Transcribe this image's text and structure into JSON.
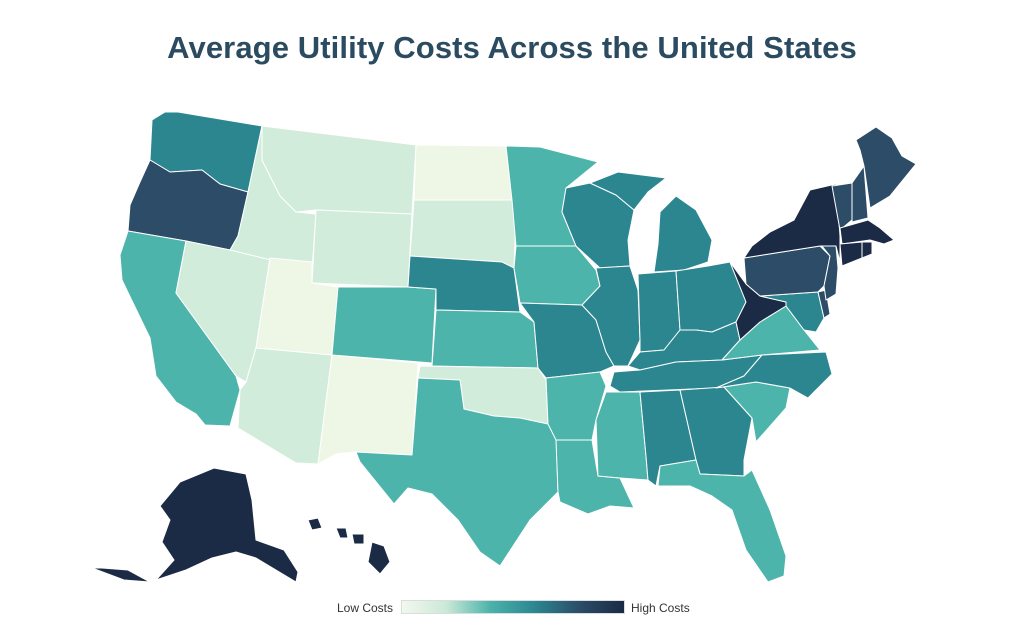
{
  "title": "Average Utility Costs Across the United States",
  "legend": {
    "low_label": "Low Costs",
    "high_label": "High Costs",
    "colors": [
      "#f3f8ec",
      "#cbe8d8",
      "#4ab3aa",
      "#2b8690",
      "#2c4c68",
      "#1b2a44"
    ]
  },
  "palette": {
    "lightest": "#eef6e6",
    "light": "#d2ecdc",
    "mid_teal": "#4db4ab",
    "teal": "#2b8690",
    "dark_teal": "#2f6f7f",
    "navy": "#2c4c68",
    "darkest": "#1b2b45",
    "title_color": "#2b4b61"
  },
  "states": [
    {
      "name": "Washington",
      "level": "teal"
    },
    {
      "name": "Oregon",
      "level": "navy"
    },
    {
      "name": "California",
      "level": "mid_teal"
    },
    {
      "name": "Nevada",
      "level": "light"
    },
    {
      "name": "Idaho",
      "level": "light"
    },
    {
      "name": "Montana",
      "level": "light"
    },
    {
      "name": "Wyoming",
      "level": "light"
    },
    {
      "name": "Utah",
      "level": "lightest"
    },
    {
      "name": "Arizona",
      "level": "light"
    },
    {
      "name": "New Mexico",
      "level": "lightest"
    },
    {
      "name": "Colorado",
      "level": "mid_teal"
    },
    {
      "name": "North Dakota",
      "level": "lightest"
    },
    {
      "name": "South Dakota",
      "level": "light"
    },
    {
      "name": "Nebraska",
      "level": "teal"
    },
    {
      "name": "Kansas",
      "level": "mid_teal"
    },
    {
      "name": "Oklahoma",
      "level": "light"
    },
    {
      "name": "Texas",
      "level": "mid_teal"
    },
    {
      "name": "Minnesota",
      "level": "mid_teal"
    },
    {
      "name": "Iowa",
      "level": "mid_teal"
    },
    {
      "name": "Missouri",
      "level": "teal"
    },
    {
      "name": "Arkansas",
      "level": "mid_teal"
    },
    {
      "name": "Louisiana",
      "level": "mid_teal"
    },
    {
      "name": "Wisconsin",
      "level": "teal"
    },
    {
      "name": "Illinois",
      "level": "teal"
    },
    {
      "name": "Michigan",
      "level": "teal"
    },
    {
      "name": "Indiana",
      "level": "teal"
    },
    {
      "name": "Ohio",
      "level": "teal"
    },
    {
      "name": "Kentucky",
      "level": "teal"
    },
    {
      "name": "Tennessee",
      "level": "teal"
    },
    {
      "name": "Mississippi",
      "level": "mid_teal"
    },
    {
      "name": "Alabama",
      "level": "teal"
    },
    {
      "name": "Georgia",
      "level": "teal"
    },
    {
      "name": "Florida",
      "level": "mid_teal"
    },
    {
      "name": "South Carolina",
      "level": "mid_teal"
    },
    {
      "name": "North Carolina",
      "level": "teal"
    },
    {
      "name": "Virginia",
      "level": "mid_teal"
    },
    {
      "name": "West Virginia",
      "level": "darkest"
    },
    {
      "name": "Maryland",
      "level": "teal"
    },
    {
      "name": "Delaware",
      "level": "navy"
    },
    {
      "name": "Pennsylvania",
      "level": "navy"
    },
    {
      "name": "New Jersey",
      "level": "navy"
    },
    {
      "name": "New York",
      "level": "darkest"
    },
    {
      "name": "Connecticut",
      "level": "darkest"
    },
    {
      "name": "Rhode Island",
      "level": "darkest"
    },
    {
      "name": "Massachusetts",
      "level": "darkest"
    },
    {
      "name": "Vermont",
      "level": "navy"
    },
    {
      "name": "New Hampshire",
      "level": "navy"
    },
    {
      "name": "Maine",
      "level": "navy"
    },
    {
      "name": "Alaska",
      "level": "darkest"
    },
    {
      "name": "Hawaii",
      "level": "darkest"
    }
  ]
}
